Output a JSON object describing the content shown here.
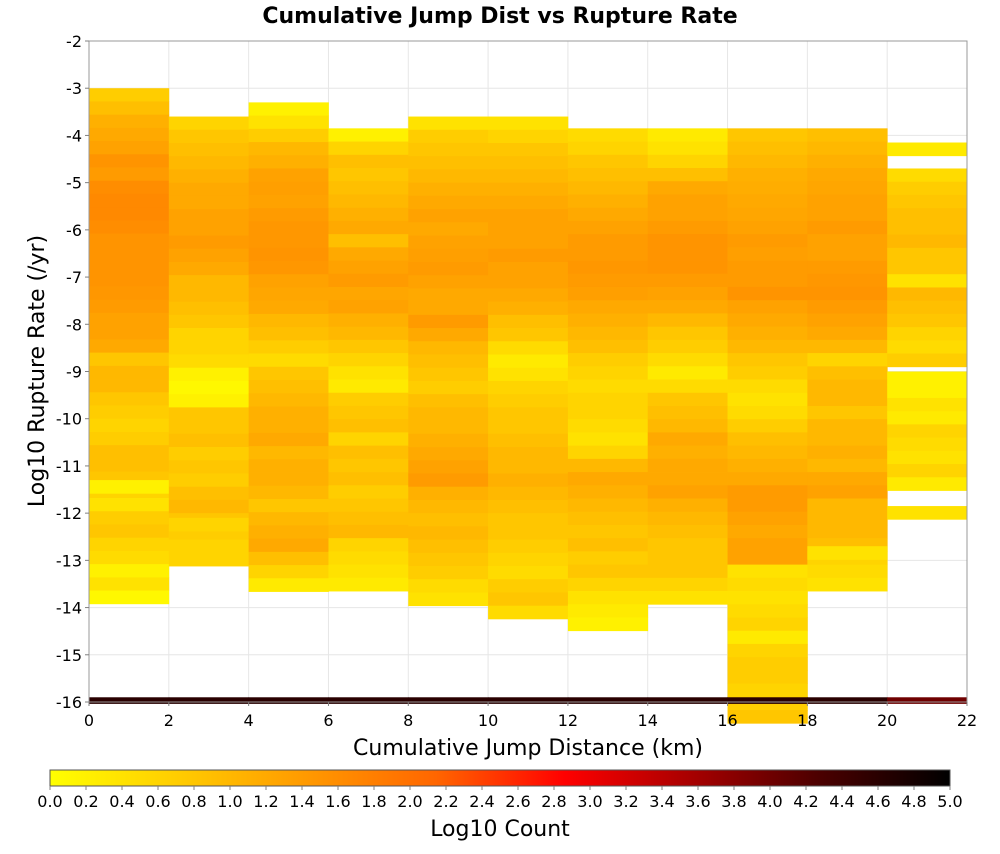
{
  "chart_data": {
    "type": "heatmap",
    "title": "Cumulative Jump Dist vs Rupture Rate",
    "xlabel": "Cumulative Jump Distance (km)",
    "ylabel": "Log10 Rupture Rate (/yr)",
    "xlim": [
      0,
      22
    ],
    "ylim": [
      -16,
      -2
    ],
    "x_ticks": [
      "0",
      "2",
      "4",
      "6",
      "8",
      "10",
      "12",
      "14",
      "16",
      "18",
      "20",
      "22"
    ],
    "y_ticks": [
      "-16",
      "-15",
      "-14",
      "-13",
      "-12",
      "-11",
      "-10",
      "-9",
      "-8",
      "-7",
      "-6",
      "-5",
      "-4",
      "-3",
      "-2"
    ],
    "x_bin_width": 2,
    "y_bin_height": 0.28,
    "grid": true,
    "colorbar": {
      "label": "Log10 Count",
      "range": [
        0.0,
        5.0
      ],
      "ticks": [
        "0.0",
        "0.2",
        "0.4",
        "0.6",
        "0.8",
        "1.0",
        "1.2",
        "1.4",
        "1.6",
        "1.8",
        "2.0",
        "2.2",
        "2.4",
        "2.6",
        "2.8",
        "3.0",
        "3.2",
        "3.4",
        "3.6",
        "3.8",
        "4.0",
        "4.2",
        "4.4",
        "4.6",
        "4.8",
        "5.0"
      ],
      "colors": [
        "#ffff00",
        "#ffcc00",
        "#ff9900",
        "#ff6600",
        "#ff0000",
        "#a60000",
        "#4a0000",
        "#000000"
      ]
    },
    "bottom_row": {
      "y": -15.9,
      "values": [
        4.6,
        4.6,
        4.6,
        4.6,
        4.6,
        4.6,
        4.6,
        4.6,
        4.6,
        4.6,
        4.0
      ]
    },
    "columns": [
      {
        "x": 0,
        "y_top": -3.0,
        "values": [
          0.7,
          0.9,
          1.1,
          1.2,
          1.3,
          1.5,
          1.4,
          1.6,
          1.65,
          1.65,
          1.6,
          1.5,
          1.5,
          1.5,
          1.5,
          1.45,
          1.4,
          1.3,
          1.3,
          1.2,
          0.8,
          1.0,
          1.0,
          0.8,
          0.7,
          0.6,
          0.7,
          0.9,
          0.9,
          0.8,
          0.6,
          0.4,
          0.7,
          0.8,
          0.6,
          0.5,
          0.2,
          0.4,
          0.1
        ]
      },
      {
        "x": 0,
        "y_top": -11.3,
        "values": [
          0.2
        ]
      },
      {
        "x": 2,
        "y_top": -3.6,
        "values": [
          0.6,
          0.8,
          0.9,
          1.0,
          1.1,
          1.2,
          1.2,
          1.3,
          1.3,
          1.4,
          1.3,
          1.2,
          1.0,
          1.0,
          0.9,
          0.8,
          0.6,
          0.6,
          0.5,
          0.2,
          0.1,
          0.2,
          0.8,
          0.8,
          0.9,
          0.7,
          0.8,
          0.7,
          0.9,
          1.0,
          0.8,
          0.7,
          0.6,
          0.6
        ]
      },
      {
        "x": 2,
        "y_top": -12.1,
        "values": [
          0.6
        ]
      },
      {
        "x": 4,
        "y_top": -3.3,
        "values": [
          0.2,
          0.4,
          0.7,
          1.0,
          1.1,
          1.3,
          1.35,
          1.3,
          1.4,
          1.45,
          1.45,
          1.5,
          1.45,
          1.3,
          1.25,
          1.2,
          1.0,
          0.9,
          0.7,
          0.5,
          0.8,
          0.9,
          1.0,
          1.1,
          1.1,
          1.2,
          1.0,
          1.1,
          1.1,
          1.0,
          0.8,
          1.0,
          1.1,
          1.2,
          0.9,
          0.6,
          0.3
        ]
      },
      {
        "x": 6,
        "y_top": -3.85,
        "values": [
          0.2,
          0.6,
          0.9,
          0.8,
          0.9,
          1.0,
          1.1,
          1.2,
          0.9,
          1.2,
          1.3,
          1.4,
          1.25,
          1.3,
          1.1,
          1.0,
          0.8,
          0.6,
          0.4,
          0.3,
          0.7,
          0.8,
          0.9,
          0.6,
          0.9,
          0.8,
          0.9,
          0.7,
          0.8,
          0.9,
          1.0,
          0.6,
          0.5,
          0.4,
          0.3
        ]
      },
      {
        "x": 8,
        "y_top": -3.6,
        "values": [
          0.4,
          0.7,
          0.8,
          0.9,
          1.0,
          1.1,
          1.2,
          1.3,
          1.2,
          1.3,
          1.35,
          1.4,
          1.3,
          1.2,
          1.2,
          1.4,
          1.2,
          1.0,
          0.9,
          0.8,
          0.7,
          0.9,
          1.0,
          1.0,
          1.1,
          1.2,
          1.3,
          1.4,
          1.1,
          1.0,
          0.9,
          1.0,
          0.9,
          0.8,
          0.7,
          0.5,
          0.4
        ]
      },
      {
        "x": 10,
        "y_top": -3.6,
        "values": [
          0.4,
          0.6,
          0.8,
          0.9,
          1.0,
          1.1,
          1.2,
          1.3,
          1.3,
          1.3,
          1.4,
          1.3,
          1.3,
          1.2,
          1.1,
          0.9,
          0.8,
          0.5,
          0.3,
          0.4,
          0.6,
          0.7,
          0.8,
          0.8,
          0.9,
          1.0,
          1.0,
          1.1,
          1.0,
          0.9,
          0.8,
          0.8,
          0.7,
          0.6,
          0.5,
          0.7,
          0.8,
          0.5
        ]
      },
      {
        "x": 12,
        "y_top": -3.85,
        "values": [
          0.5,
          0.6,
          0.8,
          0.9,
          1.0,
          1.1,
          1.2,
          1.3,
          1.4,
          1.4,
          1.45,
          1.4,
          1.35,
          1.2,
          1.1,
          1.0,
          0.9,
          0.7,
          0.6,
          0.5,
          0.6,
          0.6,
          0.5,
          0.4,
          0.6,
          1.0,
          1.2,
          1.1,
          1.0,
          0.9,
          0.8,
          0.9,
          0.7,
          0.8,
          0.6,
          0.4,
          0.3,
          0.2
        ]
      },
      {
        "x": 14,
        "y_top": -3.85,
        "values": [
          0.3,
          0.4,
          0.6,
          0.9,
          1.2,
          1.3,
          1.3,
          1.4,
          1.5,
          1.5,
          1.5,
          1.4,
          1.3,
          1.2,
          1.0,
          0.8,
          0.7,
          0.5,
          0.3,
          0.5,
          0.8,
          0.9,
          1.0,
          1.2,
          1.1,
          1.2,
          1.2,
          1.3,
          1.1,
          1.0,
          0.9,
          0.8,
          0.8,
          0.8,
          0.6,
          0.4
        ]
      },
      {
        "x": 16,
        "y_top": -3.85,
        "values": [
          0.8,
          0.9,
          1.0,
          1.1,
          1.15,
          1.2,
          1.25,
          1.3,
          1.4,
          1.35,
          1.4,
          1.4,
          1.5,
          1.3,
          1.2,
          1.1,
          1.0,
          0.8,
          0.7,
          0.5,
          0.4,
          0.5,
          0.7,
          0.9,
          1.0,
          1.1,
          1.2,
          1.4,
          1.4,
          1.3,
          1.2,
          1.3,
          1.3,
          0.4,
          0.5,
          0.4,
          0.5,
          0.6,
          0.3,
          0.6,
          0.7,
          0.7,
          0.6,
          0.7,
          0.8
        ]
      },
      {
        "x": 18,
        "y_top": -3.85,
        "values": [
          0.9,
          1.0,
          1.1,
          1.2,
          1.25,
          1.3,
          1.3,
          1.4,
          1.3,
          1.3,
          1.4,
          1.45,
          1.5,
          1.4,
          1.3,
          1.2,
          1.0,
          0.6,
          0.9,
          1.0,
          1.0,
          0.8,
          1.0,
          1.0,
          1.1,
          1.0,
          1.2,
          1.3,
          1.0,
          1.0,
          1.0,
          0.9,
          0.6,
          0.5,
          0.4
        ]
      },
      {
        "x": 18,
        "y_top": -12.7,
        "values": [
          0.4
        ]
      },
      {
        "x": 20,
        "y_top": -4.15,
        "values": [
          0.3
        ]
      },
      {
        "x": 20,
        "y_top": -4.7,
        "values": [
          0.5,
          0.7,
          0.8,
          0.9,
          0.9,
          1.0,
          0.8,
          0.8,
          0.4,
          1.0,
          0.9,
          0.8,
          0.6,
          0.5,
          0.7
        ]
      },
      {
        "x": 20,
        "y_top": -9.0,
        "values": [
          0.2,
          0.2,
          0.4,
          0.3,
          0.6,
          0.5,
          0.4,
          0.6,
          0.3
        ]
      },
      {
        "x": 20,
        "y_top": -11.85,
        "values": [
          0.4
        ]
      }
    ]
  }
}
